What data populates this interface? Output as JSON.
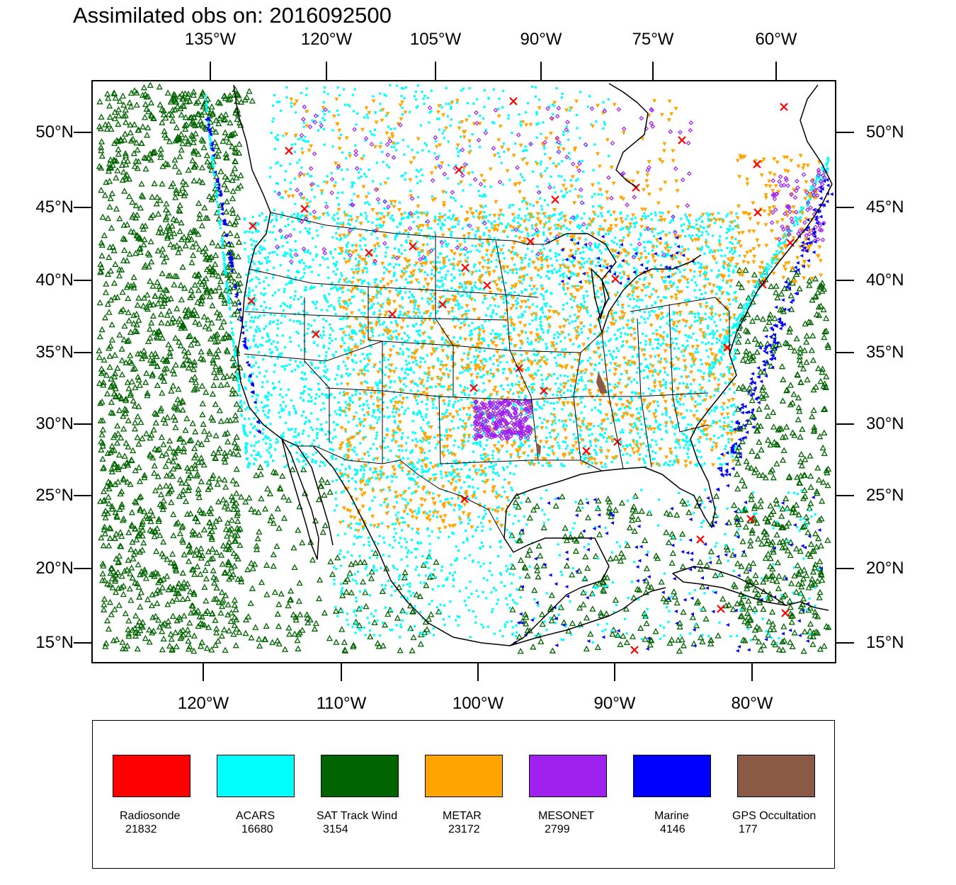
{
  "title": "Assimilated obs on: 2016092500",
  "axes": {
    "top_ticks": [
      "135°W",
      "120°W",
      "105°W",
      "90°W",
      "75°W",
      "60°W"
    ],
    "bottom_ticks": [
      "120°W",
      "110°W",
      "100°W",
      "90°W",
      "80°W"
    ],
    "left_ticks": [
      "50°N",
      "45°N",
      "40°N",
      "35°N",
      "30°N",
      "25°N",
      "20°N",
      "15°N"
    ],
    "right_ticks": [
      "50°N",
      "45°N",
      "40°N",
      "35°N",
      "30°N",
      "25°N",
      "20°N",
      "15°N"
    ],
    "lon_range": [
      -128,
      -74
    ],
    "lat_range": [
      13.7,
      53.4
    ]
  },
  "legend": {
    "items": [
      {
        "label": "Radiosonde",
        "count": "21832",
        "color": "#ff0000"
      },
      {
        "label": "ACARS",
        "count": "16680",
        "color": "#00ffff"
      },
      {
        "label": "SAT Track Wind",
        "count": "3154",
        "color": "#006400"
      },
      {
        "label": "METAR",
        "count": "23172",
        "color": "#ffa500"
      },
      {
        "label": "MESONET",
        "count": "2799",
        "color": "#a020f0"
      },
      {
        "label": "Marine",
        "count": "4146",
        "color": "#0000ff"
      },
      {
        "label": "GPS Occultation",
        "count": "177",
        "color": "#8b5a44"
      }
    ]
  },
  "colors": {
    "land_outline": "#000000",
    "background": "#ffffff"
  }
}
